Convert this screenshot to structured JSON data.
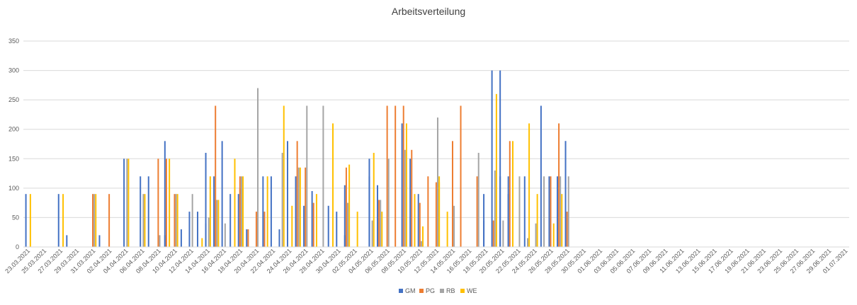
{
  "chart_data": {
    "type": "bar",
    "title": "Arbeitsverteilung",
    "xlabel": "",
    "ylabel": "",
    "ylim": [
      0,
      350
    ],
    "yticks": [
      0,
      50,
      100,
      150,
      200,
      250,
      300,
      350
    ],
    "grid": true,
    "legend_position": "bottom",
    "start_date": "2021-03-23",
    "days": 101,
    "tick_labels": [
      "23.03.2021",
      "25.03.2021",
      "27.03.2021",
      "29.03.2021",
      "31.03.2021",
      "02.04.2021",
      "04.04.2021",
      "06.04.2021",
      "08.04.2021",
      "10.04.2021",
      "12.04.2021",
      "14.04.2021",
      "16.04.2021",
      "18.04.2021",
      "20.04.2021",
      "22.04.2021",
      "24.04.2021",
      "26.04.2021",
      "28.04.2021",
      "30.04.2021",
      "02.05.2021",
      "04.05.2021",
      "06.05.2021",
      "08.05.2021",
      "10.05.2021",
      "12.05.2021",
      "14.05.2021",
      "16.05.2021",
      "18.05.2021",
      "20.05.2021",
      "22.05.2021",
      "24.05.2021",
      "26.05.2021",
      "28.05.2021",
      "30.05.2021",
      "01.06.2021",
      "03.06.2021",
      "05.06.2021",
      "07.06.2021",
      "09.06.2021",
      "11.06.2021",
      "13.06.2021",
      "15.06.2021",
      "17.06.2021",
      "19.06.2021",
      "21.06.2021",
      "23.06.2021",
      "25.06.2021",
      "27.06.2021",
      "29.06.2021",
      "01.07.2021"
    ],
    "series": [
      {
        "name": "GM",
        "color": "#4472c4",
        "points": [
          [
            0,
            90
          ],
          [
            4,
            90
          ],
          [
            5,
            20
          ],
          [
            9,
            20
          ],
          [
            12,
            150
          ],
          [
            14,
            120
          ],
          [
            15,
            120
          ],
          [
            17,
            20
          ],
          [
            17,
            180
          ],
          [
            19,
            30
          ],
          [
            20,
            60
          ],
          [
            21,
            60
          ],
          [
            22,
            40
          ],
          [
            22,
            160
          ],
          [
            23,
            120
          ],
          [
            24,
            180
          ],
          [
            25,
            90
          ],
          [
            26,
            90
          ],
          [
            27,
            30
          ],
          [
            29,
            120
          ],
          [
            30,
            120
          ],
          [
            31,
            30
          ],
          [
            32,
            180
          ],
          [
            33,
            120
          ],
          [
            34,
            70
          ],
          [
            35,
            95
          ],
          [
            37,
            70
          ],
          [
            38,
            60
          ],
          [
            39,
            20
          ],
          [
            39,
            105
          ],
          [
            42,
            150
          ],
          [
            42,
            120
          ],
          [
            43,
            105
          ],
          [
            46,
            210
          ],
          [
            47,
            150
          ],
          [
            48,
            90
          ],
          [
            56,
            45
          ],
          [
            56,
            90
          ],
          [
            57,
            300
          ],
          [
            58,
            120
          ],
          [
            58,
            300
          ],
          [
            59,
            120
          ],
          [
            59,
            90
          ],
          [
            61,
            120
          ],
          [
            63,
            240
          ],
          [
            64,
            120
          ],
          [
            65,
            120
          ],
          [
            66,
            180
          ],
          [
            66,
            180
          ]
        ]
      },
      {
        "name": "PG",
        "color": "#ed7d31",
        "points": [
          [
            8,
            90
          ],
          [
            10,
            90
          ],
          [
            16,
            150
          ],
          [
            17,
            150
          ],
          [
            18,
            90
          ],
          [
            23,
            240
          ],
          [
            23,
            80
          ],
          [
            26,
            120
          ],
          [
            26,
            100
          ],
          [
            27,
            30
          ],
          [
            28,
            60
          ],
          [
            29,
            60
          ],
          [
            33,
            180
          ],
          [
            34,
            135
          ],
          [
            35,
            75
          ],
          [
            39,
            135
          ],
          [
            43,
            80
          ],
          [
            44,
            240
          ],
          [
            45,
            240
          ],
          [
            46,
            240
          ],
          [
            47,
            165
          ],
          [
            48,
            75
          ],
          [
            49,
            120
          ],
          [
            50,
            110
          ],
          [
            52,
            180
          ],
          [
            53,
            240
          ],
          [
            55,
            120
          ],
          [
            57,
            45
          ],
          [
            59,
            180
          ],
          [
            64,
            120
          ],
          [
            65,
            210
          ],
          [
            66,
            60
          ]
        ]
      },
      {
        "name": "RB",
        "color": "#a5a5a5",
        "points": [
          [
            8,
            90
          ],
          [
            12,
            150
          ],
          [
            14,
            90
          ],
          [
            16,
            20
          ],
          [
            18,
            90
          ],
          [
            20,
            90
          ],
          [
            22,
            50
          ],
          [
            23,
            80
          ],
          [
            24,
            40
          ],
          [
            26,
            120
          ],
          [
            28,
            270
          ],
          [
            31,
            160
          ],
          [
            33,
            135
          ],
          [
            34,
            240
          ],
          [
            36,
            240
          ],
          [
            39,
            75
          ],
          [
            42,
            45
          ],
          [
            43,
            80
          ],
          [
            44,
            150
          ],
          [
            46,
            165
          ],
          [
            48,
            10
          ],
          [
            50,
            220
          ],
          [
            52,
            70
          ],
          [
            55,
            160
          ],
          [
            57,
            130
          ],
          [
            58,
            45
          ],
          [
            60,
            120
          ],
          [
            61,
            15
          ],
          [
            62,
            40
          ],
          [
            63,
            120
          ],
          [
            65,
            120
          ],
          [
            66,
            120
          ]
        ]
      },
      {
        "name": "WE",
        "color": "#ffc000",
        "points": [
          [
            0,
            90
          ],
          [
            4,
            90
          ],
          [
            8,
            90
          ],
          [
            12,
            150
          ],
          [
            14,
            90
          ],
          [
            17,
            150
          ],
          [
            18,
            90
          ],
          [
            21,
            15
          ],
          [
            22,
            120
          ],
          [
            23,
            80
          ],
          [
            25,
            150
          ],
          [
            26,
            120
          ],
          [
            26,
            100
          ],
          [
            29,
            120
          ],
          [
            31,
            240
          ],
          [
            32,
            70
          ],
          [
            33,
            135
          ],
          [
            35,
            90
          ],
          [
            37,
            210
          ],
          [
            39,
            140
          ],
          [
            40,
            60
          ],
          [
            42,
            160
          ],
          [
            43,
            60
          ],
          [
            46,
            210
          ],
          [
            47,
            90
          ],
          [
            48,
            35
          ],
          [
            50,
            120
          ],
          [
            50,
            110
          ],
          [
            51,
            60
          ],
          [
            57,
            260
          ],
          [
            59,
            60
          ],
          [
            59,
            180
          ],
          [
            61,
            210
          ],
          [
            62,
            90
          ],
          [
            64,
            40
          ],
          [
            65,
            90
          ]
        ]
      }
    ]
  }
}
